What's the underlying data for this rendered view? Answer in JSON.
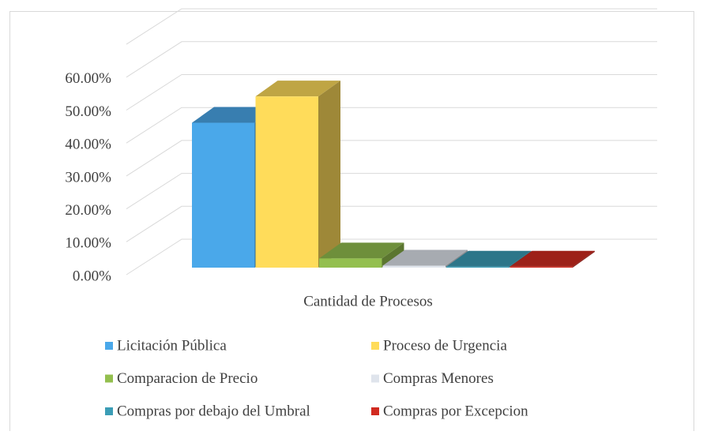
{
  "chart_data": {
    "type": "bar3d",
    "categories": [
      "Cantidad de Procesos"
    ],
    "series": [
      {
        "name": "Licitación Pública",
        "color": "#4aa8ea",
        "values": [
          44
        ]
      },
      {
        "name": "Proceso de Urgencia",
        "color": "#ffdc5a",
        "values": [
          52
        ]
      },
      {
        "name": "Comparacion de Precio",
        "color": "#93bf4e",
        "values": [
          2.8
        ]
      },
      {
        "name": "Compras Menores",
        "color": "#dfe4ec",
        "values": [
          0.6
        ]
      },
      {
        "name": "Compras por debajo del Umbral",
        "color": "#3b9db6",
        "values": [
          0.3
        ]
      },
      {
        "name": "Compras por Excepcion",
        "color": "#d12a20",
        "values": [
          0.3
        ]
      }
    ],
    "ylim": [
      0,
      70
    ],
    "yticks": [
      {
        "value": 0,
        "label": "0.00%"
      },
      {
        "value": 10,
        "label": "10.00%"
      },
      {
        "value": 20,
        "label": "20.00%"
      },
      {
        "value": 30,
        "label": "30.00%"
      },
      {
        "value": 40,
        "label": "40.00%"
      },
      {
        "value": 50,
        "label": "50.00%"
      },
      {
        "value": 60,
        "label": "60.00%"
      }
    ],
    "grid": true,
    "legend": "bottom"
  }
}
